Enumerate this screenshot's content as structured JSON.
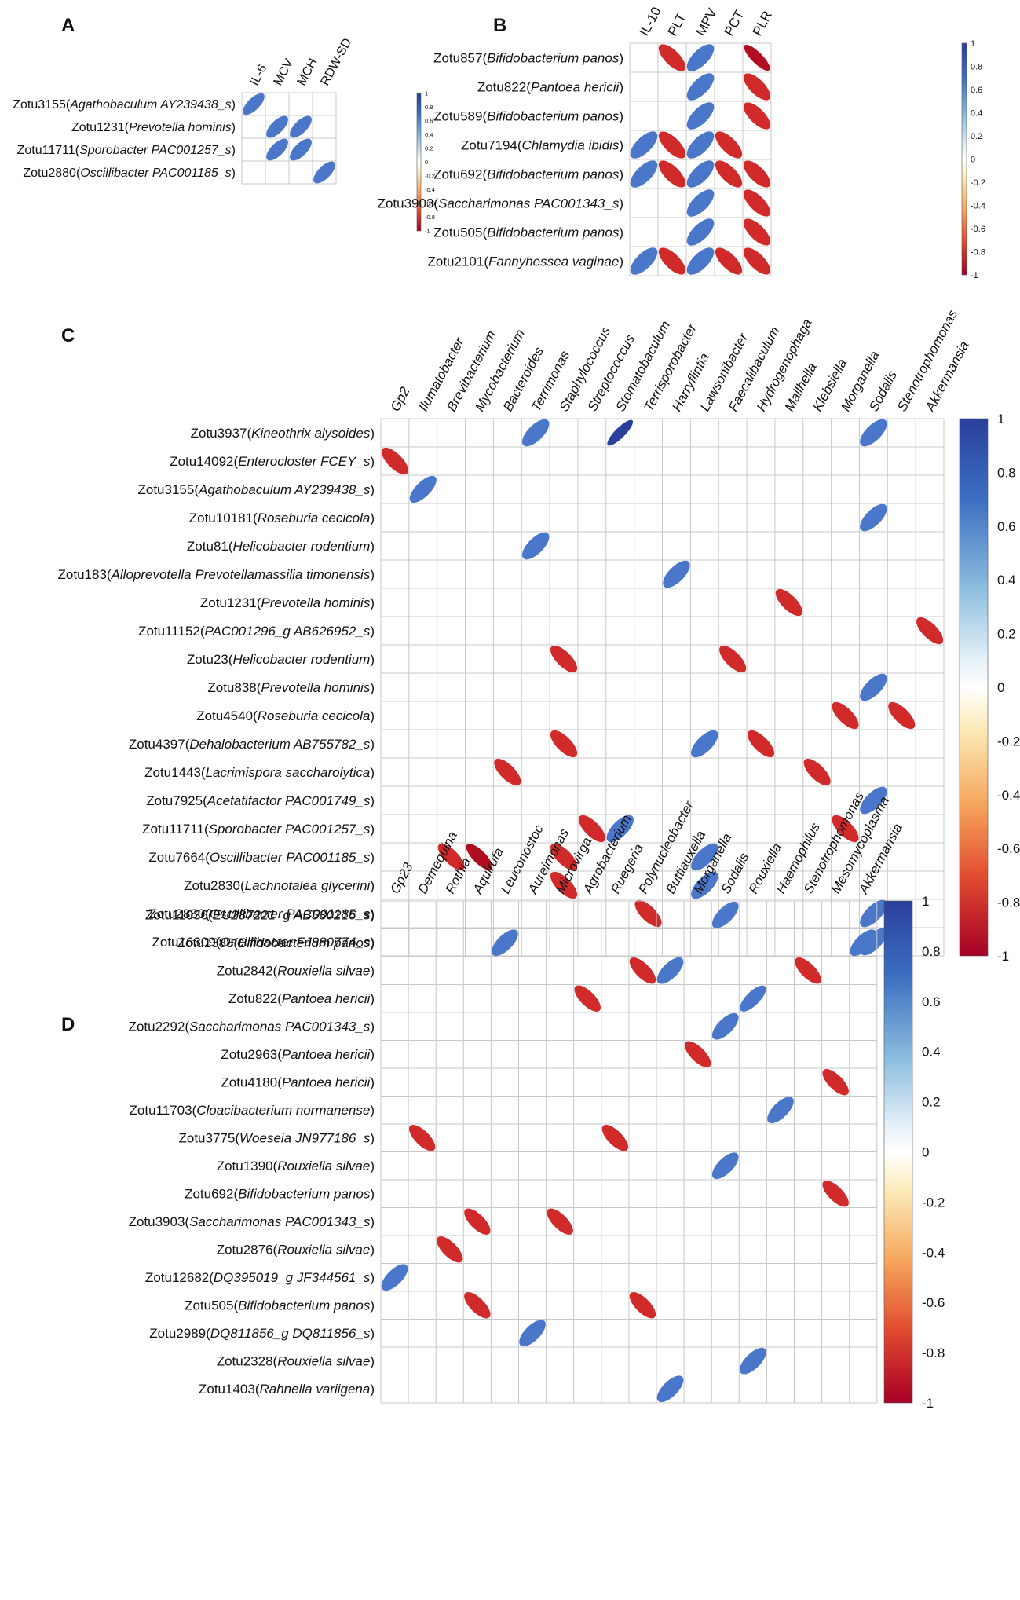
{
  "figure": "correlation-matrix-panels",
  "colors": {
    "pos_dark": "#2a3f9c",
    "pos_mid": "#4a77c9",
    "neg_mid": "#d12a2a",
    "neg_dark": "#b10e22",
    "grid": "#c8c8c8"
  },
  "colorbar": {
    "ticks_small": [
      "1",
      "0.8",
      "0.6",
      "0.4",
      "0.2",
      "0",
      "-0.2",
      "-0.4",
      "-0.6",
      "-0.8",
      "-1"
    ],
    "ticks_large": [
      "1",
      "0.8",
      "0.6",
      "0.4",
      "0.2",
      "0",
      "-0.2",
      "-0.4",
      "-0.6",
      "-0.8",
      "-1"
    ]
  },
  "chart_data": [
    {
      "type": "heatmap",
      "panel": "A",
      "title": "A",
      "value_range": [
        -1,
        1
      ],
      "columns": [
        "IL-6",
        "MCV",
        "MCH",
        "RDW-SD"
      ],
      "rows": [
        {
          "id": "Zotu3155",
          "taxon": "Agathobaculum AY239438_s"
        },
        {
          "id": "Zotu1231",
          "taxon": "Prevotella hominis"
        },
        {
          "id": "Zotu11711",
          "taxon": "Sporobacter PAC001257_s"
        },
        {
          "id": "Zotu2880",
          "taxon": "Oscillibacter PAC001185_s"
        }
      ],
      "cells": [
        {
          "row": 0,
          "col": 0,
          "value": 0.82
        },
        {
          "row": 1,
          "col": 1,
          "value": 0.8
        },
        {
          "row": 1,
          "col": 2,
          "value": 0.8
        },
        {
          "row": 2,
          "col": 1,
          "value": 0.8
        },
        {
          "row": 2,
          "col": 2,
          "value": 0.8
        },
        {
          "row": 3,
          "col": 3,
          "value": 0.8
        }
      ]
    },
    {
      "type": "heatmap",
      "panel": "B",
      "title": "B",
      "value_range": [
        -1,
        1
      ],
      "columns": [
        "IL-10",
        "PLT",
        "MPV",
        "PCT",
        "PLR"
      ],
      "rows": [
        {
          "id": "Zotu857",
          "taxon": "Bifidobacterium panos"
        },
        {
          "id": "Zotu822",
          "taxon": "Pantoea hericii"
        },
        {
          "id": "Zotu589",
          "taxon": "Bifidobacterium panos"
        },
        {
          "id": "Zotu7194",
          "taxon": "Chlamydia ibidis"
        },
        {
          "id": "Zotu692",
          "taxon": "Bifidobacterium panos"
        },
        {
          "id": "Zotu3903",
          "taxon": "Saccharimonas PAC001343_s"
        },
        {
          "id": "Zotu505",
          "taxon": "Bifidobacterium panos"
        },
        {
          "id": "Zotu2101",
          "taxon": "Fannyhessea vaginae"
        }
      ],
      "cells": [
        {
          "row": 0,
          "col": 1,
          "value": -0.82
        },
        {
          "row": 0,
          "col": 2,
          "value": 0.8
        },
        {
          "row": 0,
          "col": 4,
          "value": -0.9
        },
        {
          "row": 1,
          "col": 2,
          "value": 0.8
        },
        {
          "row": 1,
          "col": 4,
          "value": -0.82
        },
        {
          "row": 2,
          "col": 2,
          "value": 0.8
        },
        {
          "row": 2,
          "col": 4,
          "value": -0.82
        },
        {
          "row": 3,
          "col": 0,
          "value": 0.8
        },
        {
          "row": 3,
          "col": 1,
          "value": -0.82
        },
        {
          "row": 3,
          "col": 2,
          "value": 0.8
        },
        {
          "row": 3,
          "col": 3,
          "value": -0.82
        },
        {
          "row": 4,
          "col": 0,
          "value": 0.8
        },
        {
          "row": 4,
          "col": 1,
          "value": -0.82
        },
        {
          "row": 4,
          "col": 2,
          "value": 0.8
        },
        {
          "row": 4,
          "col": 3,
          "value": -0.82
        },
        {
          "row": 4,
          "col": 4,
          "value": -0.82
        },
        {
          "row": 5,
          "col": 2,
          "value": 0.8
        },
        {
          "row": 5,
          "col": 4,
          "value": -0.82
        },
        {
          "row": 6,
          "col": 2,
          "value": 0.8
        },
        {
          "row": 6,
          "col": 4,
          "value": -0.82
        },
        {
          "row": 7,
          "col": 0,
          "value": 0.8
        },
        {
          "row": 7,
          "col": 1,
          "value": -0.82
        },
        {
          "row": 7,
          "col": 2,
          "value": 0.8
        },
        {
          "row": 7,
          "col": 3,
          "value": -0.82
        },
        {
          "row": 7,
          "col": 4,
          "value": -0.82
        }
      ]
    },
    {
      "type": "heatmap",
      "panel": "C",
      "title": "C",
      "value_range": [
        -1,
        1
      ],
      "columns": [
        "Gp2",
        "Ilumatobacter",
        "Brevibacterium",
        "Mycobacterium",
        "Bacteroides",
        "Terrimonas",
        "Staphylococcus",
        "Streptococcus",
        "Stomatobaculum",
        "Terrisporobacter",
        "Harryflintia",
        "Lawsonibacter",
        "Faecalibaculum",
        "Hydrogenophaga",
        "Mailhella",
        "Klebsiella",
        "Morganella",
        "Sodalis",
        "Stenotrophomonas",
        "Akkermansia"
      ],
      "rows": [
        {
          "id": "Zotu3937",
          "taxon": "Kineothrix alysoides"
        },
        {
          "id": "Zotu14092",
          "taxon": "Enterocloster FCEY_s"
        },
        {
          "id": "Zotu3155",
          "taxon": "Agathobaculum AY239438_s"
        },
        {
          "id": "Zotu10181",
          "taxon": "Roseburia cecicola"
        },
        {
          "id": "Zotu81",
          "taxon": "Helicobacter rodentium"
        },
        {
          "id": "Zotu183",
          "taxon": "Alloprevotella Prevotellamassilia timonensis"
        },
        {
          "id": "Zotu1231",
          "taxon": "Prevotella hominis"
        },
        {
          "id": "Zotu11152",
          "taxon": "PAC001296_g AB626952_s"
        },
        {
          "id": "Zotu23",
          "taxon": "Helicobacter rodentium"
        },
        {
          "id": "Zotu838",
          "taxon": "Prevotella hominis"
        },
        {
          "id": "Zotu4540",
          "taxon": "Roseburia cecicola"
        },
        {
          "id": "Zotu4397",
          "taxon": "Dehalobacterium AB755782_s"
        },
        {
          "id": "Zotu1443",
          "taxon": "Lacrimispora saccharolytica"
        },
        {
          "id": "Zotu7925",
          "taxon": "Acetatifactor PAC001749_s"
        },
        {
          "id": "Zotu11711",
          "taxon": "Sporobacter PAC001257_s"
        },
        {
          "id": "Zotu7664",
          "taxon": "Oscillibacter PAC001185_s"
        },
        {
          "id": "Zotu2830",
          "taxon": "Lachnotalea glycerini"
        },
        {
          "id": "Zotu2880",
          "taxon": "Oscillibacter PAC001185_s"
        },
        {
          "id": "Zotu16309",
          "taxon": "Oscillibacter FJ880774_s"
        }
      ],
      "cells": [
        {
          "row": 0,
          "col": 5,
          "value": 0.8
        },
        {
          "row": 0,
          "col": 8,
          "value": 0.93
        },
        {
          "row": 0,
          "col": 17,
          "value": 0.8
        },
        {
          "row": 1,
          "col": 0,
          "value": -0.82
        },
        {
          "row": 2,
          "col": 1,
          "value": 0.82
        },
        {
          "row": 3,
          "col": 17,
          "value": 0.8
        },
        {
          "row": 4,
          "col": 5,
          "value": 0.8
        },
        {
          "row": 5,
          "col": 10,
          "value": 0.8
        },
        {
          "row": 6,
          "col": 14,
          "value": -0.82
        },
        {
          "row": 7,
          "col": 19,
          "value": -0.82
        },
        {
          "row": 8,
          "col": 6,
          "value": -0.82
        },
        {
          "row": 8,
          "col": 12,
          "value": -0.82
        },
        {
          "row": 9,
          "col": 17,
          "value": 0.8
        },
        {
          "row": 10,
          "col": 16,
          "value": -0.82
        },
        {
          "row": 10,
          "col": 18,
          "value": -0.82
        },
        {
          "row": 11,
          "col": 6,
          "value": -0.82
        },
        {
          "row": 11,
          "col": 11,
          "value": 0.8
        },
        {
          "row": 11,
          "col": 13,
          "value": -0.82
        },
        {
          "row": 12,
          "col": 4,
          "value": -0.82
        },
        {
          "row": 12,
          "col": 15,
          "value": -0.82
        },
        {
          "row": 13,
          "col": 17,
          "value": 0.8
        },
        {
          "row": 14,
          "col": 7,
          "value": -0.82
        },
        {
          "row": 14,
          "col": 8,
          "value": 0.8
        },
        {
          "row": 14,
          "col": 16,
          "value": -0.82
        },
        {
          "row": 15,
          "col": 2,
          "value": -0.84
        },
        {
          "row": 15,
          "col": 3,
          "value": -0.86
        },
        {
          "row": 15,
          "col": 6,
          "value": -0.82
        },
        {
          "row": 15,
          "col": 11,
          "value": 0.8
        },
        {
          "row": 16,
          "col": 6,
          "value": -0.82
        },
        {
          "row": 16,
          "col": 11,
          "value": 0.8
        },
        {
          "row": 17,
          "col": 9,
          "value": -0.82
        },
        {
          "row": 17,
          "col": 17,
          "value": 0.8
        },
        {
          "row": 18,
          "col": 17,
          "value": 0.8
        }
      ]
    },
    {
      "type": "heatmap",
      "panel": "D",
      "title": "D",
      "value_range": [
        -1,
        1
      ],
      "columns": [
        "Gp23",
        "Demequina",
        "Rothia",
        "Aquirufa",
        "Leuconostoc",
        "Aureimonas",
        "Microvirga",
        "Agrobacterium",
        "Ruegeria",
        "Polynucleobacter",
        "Buttiauxella",
        "Morganella",
        "Sodalis",
        "Rouxiella",
        "Haemophilus",
        "Stenotrophomonas",
        "Mesomycoplasma",
        "Akkermansia"
      ],
      "rows": [
        {
          "id": "Zotu11036",
          "taxon": "EU287221_g AB530216_s"
        },
        {
          "id": "Zotu1388",
          "taxon": "Bifidobacterium panos"
        },
        {
          "id": "Zotu2842",
          "taxon": "Rouxiella silvae"
        },
        {
          "id": "Zotu822",
          "taxon": "Pantoea hericii"
        },
        {
          "id": "Zotu2292",
          "taxon": "Saccharimonas PAC001343_s"
        },
        {
          "id": "Zotu2963",
          "taxon": "Pantoea hericii"
        },
        {
          "id": "Zotu4180",
          "taxon": "Pantoea hericii"
        },
        {
          "id": "Zotu11703",
          "taxon": "Cloacibacterium normanense"
        },
        {
          "id": "Zotu3775",
          "taxon": "Woeseia JN977186_s"
        },
        {
          "id": "Zotu1390",
          "taxon": "Rouxiella silvae"
        },
        {
          "id": "Zotu692",
          "taxon": "Bifidobacterium panos"
        },
        {
          "id": "Zotu3903",
          "taxon": "Saccharimonas PAC001343_s"
        },
        {
          "id": "Zotu2876",
          "taxon": "Rouxiella silvae"
        },
        {
          "id": "Zotu12682",
          "taxon": "DQ395019_g JF344561_s"
        },
        {
          "id": "Zotu505",
          "taxon": "Bifidobacterium panos"
        },
        {
          "id": "Zotu2989",
          "taxon": "DQ811856_g DQ811856_s"
        },
        {
          "id": "Zotu2328",
          "taxon": "Rouxiella silvae"
        },
        {
          "id": "Zotu1403",
          "taxon": "Rahnella variigena"
        }
      ],
      "cells": [
        {
          "row": 0,
          "col": 12,
          "value": 0.8
        },
        {
          "row": 1,
          "col": 4,
          "value": 0.8
        },
        {
          "row": 1,
          "col": 17,
          "value": 0.8
        },
        {
          "row": 2,
          "col": 9,
          "value": -0.82
        },
        {
          "row": 2,
          "col": 10,
          "value": 0.8
        },
        {
          "row": 2,
          "col": 15,
          "value": -0.82
        },
        {
          "row": 3,
          "col": 7,
          "value": -0.82
        },
        {
          "row": 3,
          "col": 13,
          "value": 0.84
        },
        {
          "row": 4,
          "col": 12,
          "value": 0.8
        },
        {
          "row": 5,
          "col": 11,
          "value": -0.82
        },
        {
          "row": 6,
          "col": 16,
          "value": -0.82
        },
        {
          "row": 7,
          "col": 14,
          "value": 0.8
        },
        {
          "row": 8,
          "col": 1,
          "value": -0.82
        },
        {
          "row": 8,
          "col": 8,
          "value": -0.82
        },
        {
          "row": 9,
          "col": 12,
          "value": 0.8
        },
        {
          "row": 10,
          "col": 16,
          "value": -0.82
        },
        {
          "row": 11,
          "col": 3,
          "value": -0.82
        },
        {
          "row": 11,
          "col": 6,
          "value": -0.82
        },
        {
          "row": 12,
          "col": 2,
          "value": -0.82
        },
        {
          "row": 13,
          "col": 0,
          "value": 0.8
        },
        {
          "row": 14,
          "col": 3,
          "value": -0.82
        },
        {
          "row": 14,
          "col": 9,
          "value": -0.82
        },
        {
          "row": 15,
          "col": 5,
          "value": 0.8
        },
        {
          "row": 16,
          "col": 13,
          "value": 0.8
        },
        {
          "row": 17,
          "col": 10,
          "value": 0.8
        }
      ]
    }
  ]
}
